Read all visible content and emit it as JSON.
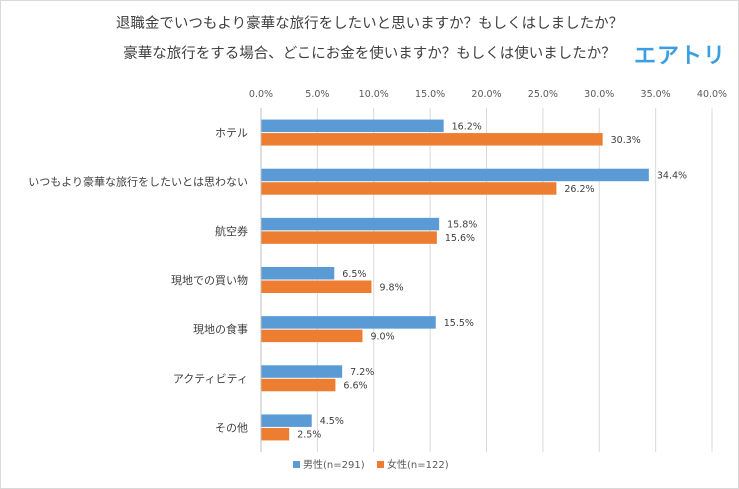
{
  "header": {
    "title_line1": "退職金でいつもより豪華な旅行をしたいと思いますか？もしくはしましたか？",
    "title_line2": "豪華な旅行をする場合、どこにお金を使いますか？もしくは使いましたか？",
    "logo_text": "エアトリ"
  },
  "colors": {
    "male": "#5b9bd5",
    "female": "#ed7d31",
    "grid": "#d9d9d9",
    "logo": "#3a9fe0"
  },
  "chart_data": {
    "type": "bar",
    "orientation": "horizontal",
    "title": "退職金でいつもより豪華な旅行をしたいと思いますか？もしくはしましたか？ 豪華な旅行をする場合、どこにお金を使いますか？もしくは使いましたか？",
    "categories": [
      "ホテル",
      "いつもより豪華な旅行をしたいとは思わない",
      "航空券",
      "現地での買い物",
      "現地の食事",
      "アクティビティ",
      "その他"
    ],
    "series": [
      {
        "name": "男性(n=291)",
        "values": [
          16.2,
          34.4,
          15.8,
          6.5,
          15.5,
          7.2,
          4.5
        ],
        "labels": [
          "16.2%",
          "34.4%",
          "15.8%",
          "6.5%",
          "15.5%",
          "7.2%",
          "4.5%"
        ]
      },
      {
        "name": "女性(n=122)",
        "values": [
          30.3,
          26.2,
          15.6,
          9.8,
          9.0,
          6.6,
          2.5
        ],
        "labels": [
          "30.3%",
          "26.2%",
          "15.6%",
          "9.8%",
          "9.0%",
          "6.6%",
          "2.5%"
        ]
      }
    ],
    "xlim": [
      0,
      40
    ],
    "xticks": [
      "0.0%",
      "5.0%",
      "10.0%",
      "15.0%",
      "20.0%",
      "25.0%",
      "30.0%",
      "35.0%",
      "40.0%"
    ],
    "grid": true,
    "axis_position": "top",
    "legend": "bottom"
  }
}
